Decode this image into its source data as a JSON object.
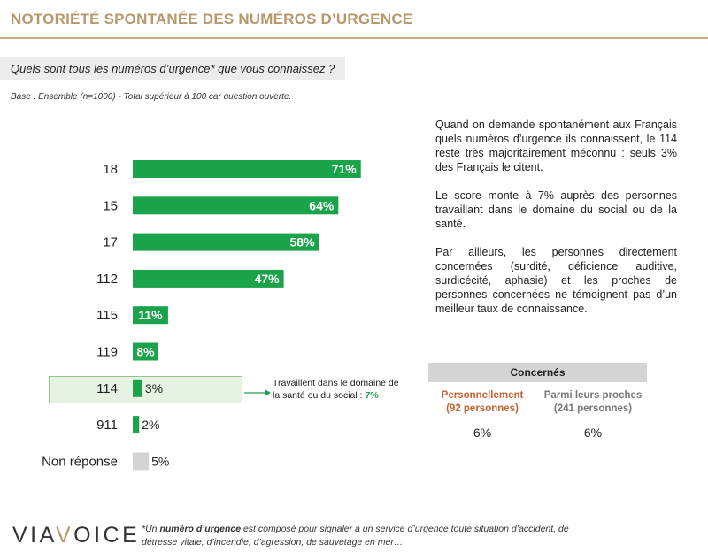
{
  "header": {
    "title": "NOTORIÉTÉ SPONTANÉE DES NUMÉROS D’URGENCE",
    "question": "Quels sont tous les numéros d’urgence* que vous connaissez ?",
    "base": "Base : Ensemble (n=1000)  - Total supérieur à 100 car question ouverte."
  },
  "colors": {
    "accent_gold": "#b8976a",
    "bar_green": "#1aa34a",
    "bar_grey": "#d4d4d4",
    "personal_orange": "#c4622d"
  },
  "chart_data": {
    "type": "bar",
    "orientation": "horizontal",
    "categories": [
      "18",
      "15",
      "17",
      "112",
      "115",
      "119",
      "114",
      "911",
      "Non réponse"
    ],
    "values": [
      71,
      64,
      58,
      47,
      11,
      8,
      3,
      2,
      5
    ],
    "value_labels": [
      "71%",
      "64%",
      "58%",
      "47%",
      "11%",
      "8%",
      "3%",
      "2%",
      "5%"
    ],
    "highlighted_category": "114",
    "muted_category": "Non réponse",
    "xlim": [
      0,
      100
    ]
  },
  "callout": {
    "text": "Travaillent dans le domaine de la santé ou du social : ",
    "value": "7%"
  },
  "commentary": {
    "p1": "Quand on demande spontanément aux Français quels numéros d’urgence ils connaissent, le 114 reste très majoritairement méconnu : seuls 3% des Français le citent.",
    "p2": "Le score monte à 7% auprès des personnes travaillant dans le domaine du social ou de la santé.",
    "p3": "Par ailleurs, les personnes directement concernées (surdité, déficience auditive, surdicécité, aphasie) et les proches de personnes concernées ne témoignent pas d’un meilleur taux de connaissance."
  },
  "concernes": {
    "header": "Concernés",
    "col1_label": "Personnellement",
    "col1_sub": "(92 personnes)",
    "col1_value": "6%",
    "col2_label": "Parmi leurs proches",
    "col2_sub": "(241 personnes)",
    "col2_value": "6%"
  },
  "footer": {
    "logo_left": "VIA",
    "logo_mark": "V",
    "logo_right": "OICE",
    "footnote_prefix": "*Un ",
    "footnote_bold": "numéro d’urgence",
    "footnote_rest": " est composé pour signaler à un service d’urgence toute situation d’accident, de détresse vitale, d’incendie, d’agression, de sauvetage en mer…"
  }
}
